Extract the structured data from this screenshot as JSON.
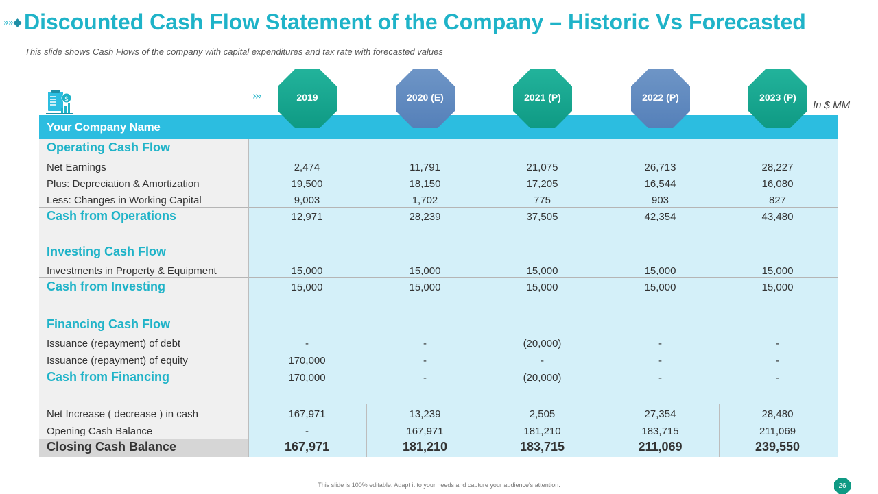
{
  "slide": {
    "title_prefix": "»»",
    "title": "Discounted Cash Flow Statement of the Company – Historic Vs Forecasted",
    "subtitle": "This slide shows Cash Flows of the company with capital expenditures and tax rate with forecasted values",
    "arrows": "›››",
    "unit": "In $ MM",
    "footer": "This slide is 100% editable. Adapt it to your needs and capture your audience's attention.",
    "page_number": "26",
    "icon": "financial-report-icon"
  },
  "years": [
    {
      "label": "2019",
      "color": "teal"
    },
    {
      "label": "2020 (E)",
      "color": "blue"
    },
    {
      "label": "2021 (P)",
      "color": "teal"
    },
    {
      "label": "2022 (P)",
      "color": "blue"
    },
    {
      "label": "2023 (P)",
      "color": "teal"
    }
  ],
  "table": {
    "company_name": "Your Company Name",
    "rows": [
      {
        "label": "Operating Cash Flow",
        "style": "section",
        "values": [
          "",
          "",
          "",
          "",
          ""
        ]
      },
      {
        "label": "Net Earnings",
        "style": "normal",
        "values": [
          "2,474",
          "11,791",
          "21,075",
          "26,713",
          "28,227"
        ]
      },
      {
        "label": "Plus: Depreciation & Amortization",
        "style": "normal",
        "values": [
          "19,500",
          "18,150",
          "17,205",
          "16,544",
          "16,080"
        ]
      },
      {
        "label": "Less: Changes in Working Capital",
        "style": "normal",
        "values": [
          "9,003",
          "1,702",
          "775",
          "903",
          "827"
        ]
      },
      {
        "label": "Cash from Operations",
        "style": "section",
        "values": [
          "12,971",
          "28,239",
          "37,505",
          "42,354",
          "43,480"
        ]
      },
      {
        "label": "Investing Cash Flow",
        "style": "section",
        "values": [
          "",
          "",
          "",
          "",
          ""
        ]
      },
      {
        "label": "Investments  in Property & Equipment",
        "style": "normal",
        "values": [
          "15,000",
          "15,000",
          "15,000",
          "15,000",
          "15,000"
        ]
      },
      {
        "label": "Cash from Investing",
        "style": "section",
        "values": [
          "15,000",
          "15,000",
          "15,000",
          "15,000",
          "15,000"
        ]
      },
      {
        "label": "Financing Cash Flow",
        "style": "section",
        "values": [
          "",
          "",
          "",
          "",
          ""
        ]
      },
      {
        "label": "Issuance  (repayment)  of debt",
        "style": "normal",
        "values": [
          "-",
          "-",
          "(20,000)",
          "-",
          "-"
        ]
      },
      {
        "label": "Issuance  (repayment)  of equity",
        "style": "normal",
        "values": [
          "170,000",
          "-",
          "-",
          "-",
          "-"
        ]
      },
      {
        "label": "Cash from Financing",
        "style": "section",
        "values": [
          "170,000",
          "-",
          "(20,000)",
          "-",
          "-"
        ]
      },
      {
        "label": "Net Increase  ( decrease )  in cash",
        "style": "normal",
        "values": [
          "167,971",
          "13,239",
          "2,505",
          "27,354",
          "28,480"
        ]
      },
      {
        "label": "Opening Cash Balance",
        "style": "normal",
        "values": [
          "-",
          "167,971",
          "181,210",
          "183,715",
          "211,069"
        ]
      },
      {
        "label": "Closing Cash Balance",
        "style": "closing",
        "values": [
          "167,971",
          "181,210",
          "183,715",
          "211,069",
          "239,550"
        ]
      }
    ]
  }
}
